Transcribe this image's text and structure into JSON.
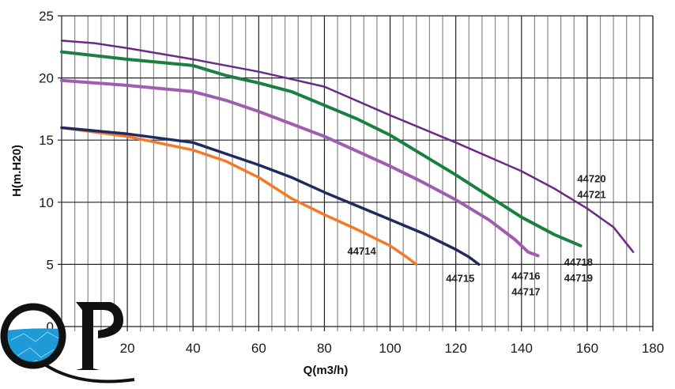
{
  "chart_data": {
    "type": "line",
    "title": "",
    "xlabel": "Q(m3/h)",
    "ylabel": "H(m.H20)",
    "xlim": [
      0,
      180
    ],
    "ylim": [
      0,
      25
    ],
    "x_ticks": [
      20,
      40,
      60,
      80,
      100,
      120,
      140,
      160,
      180
    ],
    "y_ticks": [
      0,
      5,
      10,
      15,
      20,
      25
    ],
    "x_minor_grid_step": 4,
    "grid": true,
    "series": [
      {
        "name": "44714",
        "color": "#f47a2a",
        "width": 3.5,
        "x": [
          0,
          20,
          40,
          50,
          60,
          70,
          80,
          90,
          100,
          105,
          108
        ],
        "y": [
          16,
          15.3,
          14.2,
          13.3,
          12,
          10.3,
          9,
          7.8,
          6.5,
          5.6,
          5
        ]
      },
      {
        "name": "44715",
        "color": "#1f2a5e",
        "width": 3.5,
        "x": [
          0,
          20,
          40,
          50,
          60,
          70,
          80,
          90,
          100,
          110,
          120,
          124,
          127
        ],
        "y": [
          16,
          15.5,
          14.8,
          13.9,
          13,
          12,
          10.8,
          9.7,
          8.6,
          7.5,
          6.2,
          5.6,
          5
        ]
      },
      {
        "name": "44716 44717",
        "color": "#a05db0",
        "width": 4,
        "x": [
          0,
          20,
          40,
          50,
          60,
          70,
          80,
          90,
          100,
          110,
          120,
          130,
          138,
          142,
          145
        ],
        "y": [
          19.8,
          19.4,
          18.9,
          18.2,
          17.3,
          16.3,
          15.3,
          14.1,
          12.9,
          11.6,
          10.2,
          8.6,
          7,
          6,
          5.7
        ]
      },
      {
        "name": "44718 44719",
        "color": "#1a8040",
        "width": 4,
        "x": [
          0,
          20,
          40,
          50,
          60,
          70,
          80,
          90,
          100,
          110,
          120,
          130,
          140,
          150,
          158
        ],
        "y": [
          22.1,
          21.5,
          21,
          20.2,
          19.6,
          18.9,
          17.8,
          16.7,
          15.4,
          13.8,
          12.2,
          10.5,
          8.8,
          7.4,
          6.5
        ]
      },
      {
        "name": "44720 44721",
        "color": "#6a2a86",
        "width": 2.5,
        "x": [
          0,
          10,
          20,
          40,
          60,
          80,
          100,
          120,
          140,
          150,
          160,
          168,
          174
        ],
        "y": [
          23,
          22.8,
          22.4,
          21.5,
          20.5,
          19.3,
          17,
          14.8,
          12.5,
          11.1,
          9.5,
          8,
          6
        ]
      }
    ],
    "annotations": [
      {
        "lines": [
          "44714"
        ],
        "x": 87,
        "y": 5.8
      },
      {
        "lines": [
          "44715"
        ],
        "x": 117,
        "y": 3.6
      },
      {
        "lines": [
          "44716",
          "44717"
        ],
        "x": 137,
        "y": 3.8
      },
      {
        "lines": [
          "44718",
          "44719"
        ],
        "x": 153,
        "y": 4.9
      },
      {
        "lines": [
          "44720",
          "44721"
        ],
        "x": 157,
        "y": 11.6
      }
    ]
  },
  "logo": {
    "text": "QP",
    "water_color": "#1e9ad6"
  }
}
